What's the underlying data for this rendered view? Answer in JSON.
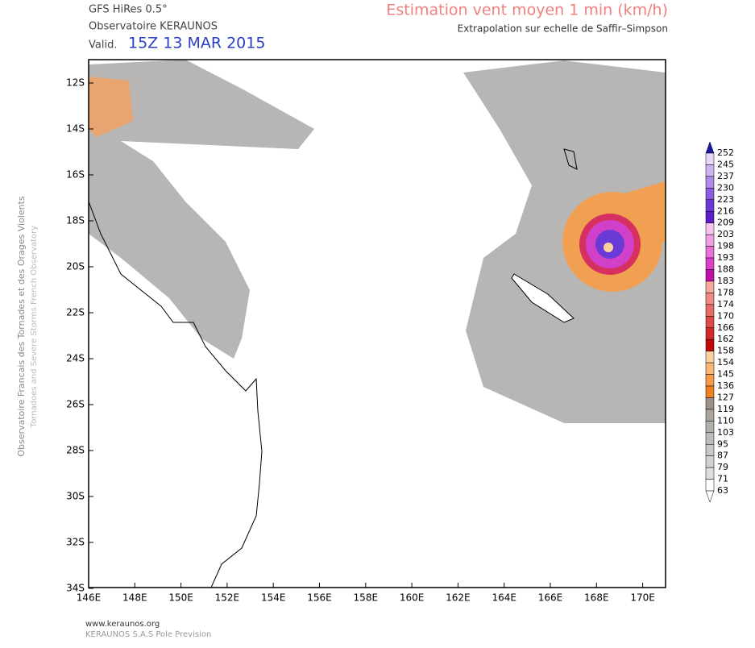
{
  "header": {
    "model": "GFS HiRes 0.5°",
    "source": "Observatoire KERAUNOS",
    "valid_label": "Valid.",
    "valid_time": "15Z 13 MAR 2015",
    "title": "Estimation vent moyen 1 min (km/h)",
    "subtitle": "Extrapolation sur echelle de Saffir–Simpson"
  },
  "side": {
    "line1": "Observatoire Francais des Tornades et des Orages Violents",
    "line2": "Tornadoes and Severe Storms French Observatory"
  },
  "map": {
    "lat_labels": [
      "12S",
      "14S",
      "16S",
      "18S",
      "20S",
      "22S",
      "24S",
      "26S",
      "28S",
      "30S",
      "32S",
      "34S"
    ],
    "lon_labels": [
      "146E",
      "148E",
      "150E",
      "152E",
      "154E",
      "156E",
      "158E",
      "160E",
      "162E",
      "164E",
      "166E",
      "168E",
      "170E"
    ]
  },
  "colorbar": {
    "labels": [
      "252",
      "245",
      "237",
      "230",
      "223",
      "216",
      "209",
      "203",
      "198",
      "193",
      "188",
      "183",
      "178",
      "174",
      "170",
      "166",
      "162",
      "158",
      "154",
      "145",
      "136",
      "127",
      "119",
      "110",
      "103",
      "95",
      "87",
      "79",
      "71",
      "63"
    ],
    "colors": [
      "#1a1aa8",
      "#e6d6f7",
      "#cdb4f0",
      "#b08ae8",
      "#8a5ee0",
      "#6a3ad6",
      "#5a1fc8",
      "#f7c2ec",
      "#f0a0e4",
      "#e870d6",
      "#dd40c8",
      "#c010a8",
      "#f4a8a0",
      "#ee8c84",
      "#e66a66",
      "#dd4a4a",
      "#d22a2a",
      "#c00a0a",
      "#fbd0a0",
      "#f9b878",
      "#f49a48",
      "#ee8020",
      "#9c9088",
      "#aaa39e",
      "#b4b0ac",
      "#bebcb9",
      "#c8c7c5",
      "#d2d1d0",
      "#dddddc",
      "#ffffff"
    ]
  },
  "footer": {
    "url": "www.keraunos.org",
    "company": "KERAUNOS S.A.S Pole Prevision"
  }
}
